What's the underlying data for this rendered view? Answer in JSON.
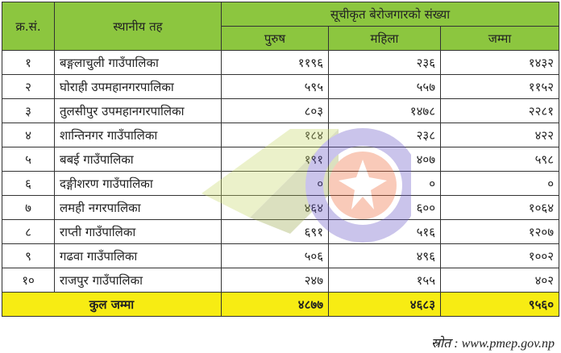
{
  "header": {
    "sn": "क्र.सं.",
    "local_level": "स्थानीय तह",
    "group": "सूचीकृत बेरोजगारको संख्या",
    "male": "पुरुष",
    "female": "महिला",
    "total": "जम्मा"
  },
  "rows": [
    {
      "sn": "१",
      "name": "बङ्गलाचुली गाउँपालिका",
      "male": "११९६",
      "female": "२३६",
      "total": "१४३२"
    },
    {
      "sn": "२",
      "name": "घोराही उपमहानगरपालिका",
      "male": "५९५",
      "female": "५५७",
      "total": "११५२"
    },
    {
      "sn": "३",
      "name": "तुलसीपुर उपमहानगरपालिका",
      "male": "८०३",
      "female": "१४७८",
      "total": "२२८१"
    },
    {
      "sn": "४",
      "name": "शान्तिनगर गाउँपालिका",
      "male": "१८४",
      "female": "२३८",
      "total": "४२२"
    },
    {
      "sn": "५",
      "name": "बबई गाउँपालिका",
      "male": "१९१",
      "female": "४०७",
      "total": "५९८"
    },
    {
      "sn": "६",
      "name": "दङ्गीशरण गाउँपालिका",
      "male": "०",
      "female": "०",
      "total": "०"
    },
    {
      "sn": "७",
      "name": "लमही नगरपालिका",
      "male": "४६४",
      "female": "६००",
      "total": "१०६४"
    },
    {
      "sn": "८",
      "name": "राप्ती गाउँपालिका",
      "male": "६९१",
      "female": "५१६",
      "total": "१२०७"
    },
    {
      "sn": "९",
      "name": "गढवा गाउँपालिका",
      "male": "५०६",
      "female": "४९६",
      "total": "१००२"
    },
    {
      "sn": "१०",
      "name": "राजपुर गाउँपालिका",
      "male": "२४७",
      "female": "१५५",
      "total": "४०२"
    }
  ],
  "grand_total": {
    "label": "कुल जम्मा",
    "male": "४८७७",
    "female": "४६८३",
    "total": "९५६०"
  },
  "source": "स्रोत : www.pmep.gov.np",
  "colors": {
    "header": "#8cc63f",
    "total_row": "#f7ec13"
  }
}
